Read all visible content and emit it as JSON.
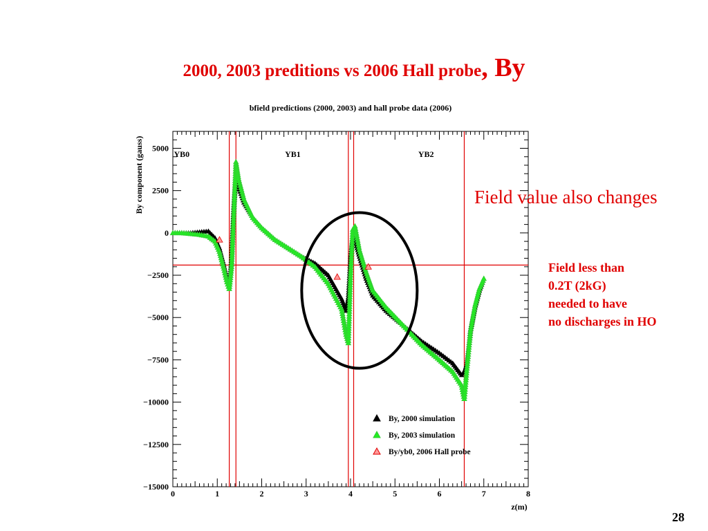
{
  "slide": {
    "title_main": "2000, 2003 preditions vs 2006 Hall probe",
    "title_big": ", By",
    "side_heading": "Field value also changes",
    "side_note_lines": [
      "Field less than",
      "0.2T (2kG)",
      "needed to have",
      "no discharges in HO"
    ],
    "page_number": "28"
  },
  "colors": {
    "title": "#e00000",
    "sim2000": "#000000",
    "sim2003": "#22ee22",
    "probe2006": "#e00000",
    "guide_lines": "#e00000",
    "circle": "#000000"
  },
  "chart_data": {
    "type": "scatter",
    "title": "bfield predictions (2000, 2003) and hall probe data (2006)",
    "xlabel": "z(m)",
    "ylabel": "By component (gauss)",
    "xlim": [
      0,
      8
    ],
    "ylim": [
      -15000,
      6000
    ],
    "xticks": [
      0,
      1,
      2,
      3,
      4,
      5,
      6,
      7,
      8
    ],
    "yticks": [
      5000,
      2500,
      0,
      -2500,
      -5000,
      -7500,
      -10000,
      -12500,
      -15000
    ],
    "ytick_labels": [
      "5000",
      "2500",
      "0",
      "−2500",
      "−5000",
      "−7500",
      "−10000",
      "−12500",
      "−15000"
    ],
    "region_labels": [
      {
        "text": "YB0",
        "x": 0.2
      },
      {
        "text": "YB1",
        "x": 2.7
      },
      {
        "text": "YB2",
        "x": 5.7
      }
    ],
    "vertical_lines": [
      1.27,
      1.42,
      3.95,
      4.07,
      6.56
    ],
    "horizontal_line": -1900,
    "highlight_ellipse": {
      "cx": 4.2,
      "cy": -3400,
      "rx": 1.3,
      "ry": 4600
    },
    "legend_position": "bottom-right",
    "series": [
      {
        "name": "By, 2000 simulation",
        "marker": "triangle",
        "points": [
          [
            0.0,
            0
          ],
          [
            0.2,
            0
          ],
          [
            0.4,
            0
          ],
          [
            0.6,
            50
          ],
          [
            0.8,
            100
          ],
          [
            0.95,
            -300
          ],
          [
            1.05,
            -900
          ],
          [
            1.15,
            -1900
          ],
          [
            1.22,
            -2700
          ],
          [
            1.27,
            -3000
          ],
          [
            1.32,
            -1500
          ],
          [
            1.37,
            1500
          ],
          [
            1.42,
            3300
          ],
          [
            1.48,
            2700
          ],
          [
            1.6,
            1800
          ],
          [
            1.8,
            900
          ],
          [
            2.0,
            300
          ],
          [
            2.3,
            -400
          ],
          [
            2.6,
            -900
          ],
          [
            2.9,
            -1400
          ],
          [
            3.2,
            -1800
          ],
          [
            3.5,
            -2500
          ],
          [
            3.8,
            -3900
          ],
          [
            3.9,
            -4600
          ],
          [
            3.95,
            -3800
          ],
          [
            4.0,
            -1400
          ],
          [
            4.05,
            -200
          ],
          [
            4.1,
            -400
          ],
          [
            4.2,
            -1400
          ],
          [
            4.35,
            -2700
          ],
          [
            4.5,
            -3700
          ],
          [
            4.8,
            -4600
          ],
          [
            5.2,
            -5500
          ],
          [
            5.6,
            -6400
          ],
          [
            6.0,
            -7100
          ],
          [
            6.3,
            -7700
          ],
          [
            6.5,
            -8400
          ],
          [
            6.56,
            -8200
          ],
          [
            6.62,
            -7700
          ],
          [
            6.7,
            -5700
          ],
          [
            6.8,
            -4400
          ],
          [
            6.9,
            -3400
          ],
          [
            7.0,
            -2700
          ]
        ]
      },
      {
        "name": "By, 2003 simulation",
        "marker": "triangle",
        "points": [
          [
            0.0,
            0
          ],
          [
            0.2,
            0
          ],
          [
            0.4,
            -50
          ],
          [
            0.6,
            -100
          ],
          [
            0.8,
            -200
          ],
          [
            0.95,
            -500
          ],
          [
            1.05,
            -1100
          ],
          [
            1.15,
            -2100
          ],
          [
            1.22,
            -2900
          ],
          [
            1.27,
            -3300
          ],
          [
            1.32,
            -2000
          ],
          [
            1.37,
            1000
          ],
          [
            1.42,
            4200
          ],
          [
            1.48,
            3200
          ],
          [
            1.6,
            2000
          ],
          [
            1.8,
            900
          ],
          [
            2.0,
            300
          ],
          [
            2.3,
            -400
          ],
          [
            2.6,
            -900
          ],
          [
            2.9,
            -1400
          ],
          [
            3.2,
            -2000
          ],
          [
            3.5,
            -3000
          ],
          [
            3.8,
            -4500
          ],
          [
            3.9,
            -6000
          ],
          [
            3.95,
            -6500
          ],
          [
            4.0,
            -2500
          ],
          [
            4.05,
            200
          ],
          [
            4.1,
            400
          ],
          [
            4.2,
            -1000
          ],
          [
            4.35,
            -2300
          ],
          [
            4.5,
            -3400
          ],
          [
            4.8,
            -4400
          ],
          [
            5.2,
            -5500
          ],
          [
            5.6,
            -6600
          ],
          [
            6.0,
            -7500
          ],
          [
            6.3,
            -8200
          ],
          [
            6.5,
            -9000
          ],
          [
            6.56,
            -9800
          ],
          [
            6.62,
            -8000
          ],
          [
            6.7,
            -5800
          ],
          [
            6.8,
            -4300
          ],
          [
            6.9,
            -3300
          ],
          [
            7.0,
            -2700
          ]
        ]
      },
      {
        "name": "By/yb0, 2006 Hall probe",
        "marker": "triangle",
        "points": [
          [
            1.05,
            -400
          ],
          [
            3.7,
            -2600
          ],
          [
            4.4,
            -2000
          ]
        ]
      }
    ]
  }
}
